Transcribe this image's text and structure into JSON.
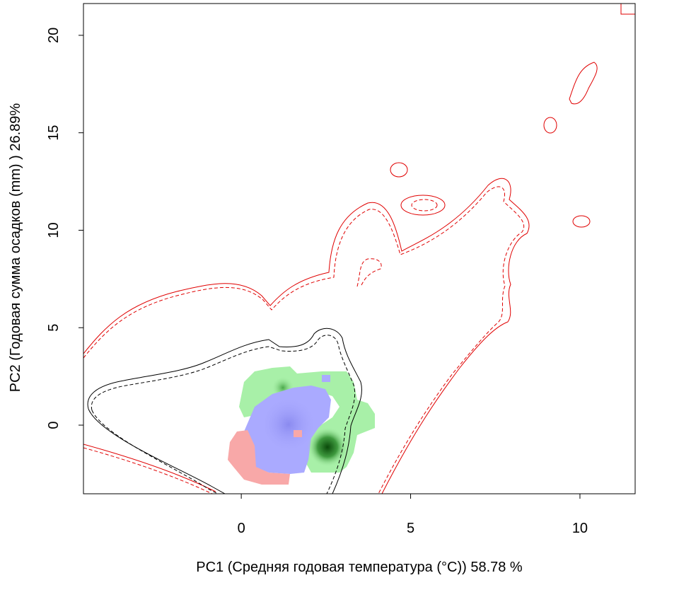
{
  "chart_data": {
    "type": "contour",
    "xlabel": "PC1 (Средняя годовая температура (°C)) 58.78 %",
    "ylabel": "PC2 (Годовая сумма осадков  (mm) ) 26.89%",
    "xlim": [
      -4.66,
      11.63
    ],
    "ylim": [
      -3.52,
      21.63
    ],
    "xticks": [
      0,
      5,
      10
    ],
    "yticks": [
      0,
      5,
      10,
      15,
      20
    ],
    "grid": false
  }
}
